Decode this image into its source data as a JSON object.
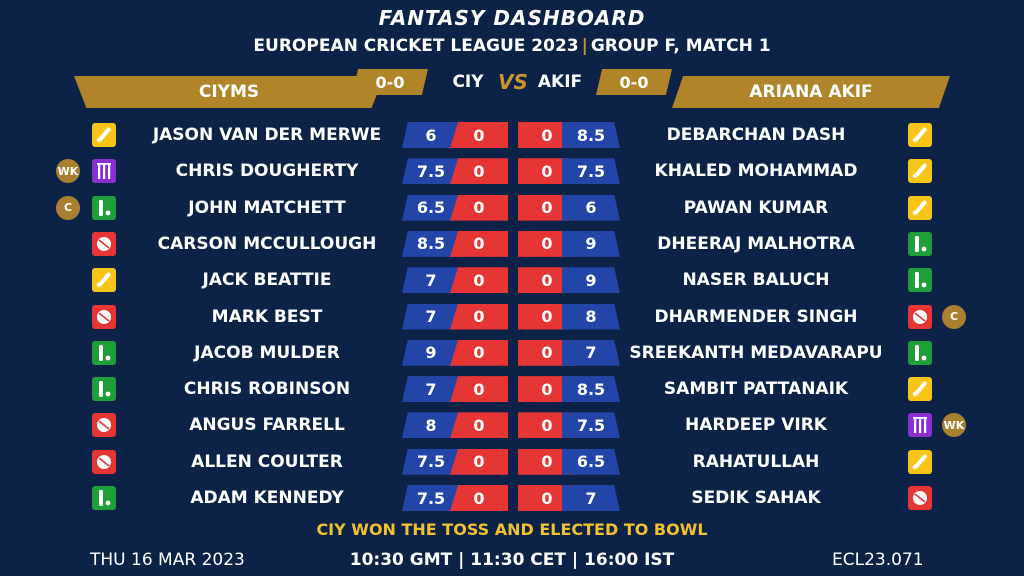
{
  "header": {
    "title": "FANTASY DASHBOARD",
    "league": "EUROPEAN CRICKET LEAGUE 2023",
    "separator": "|",
    "match": "GROUP F, MATCH 1"
  },
  "teams": {
    "left": {
      "name": "CIYMS",
      "abbr": "CIY",
      "score": "0-0"
    },
    "right": {
      "name": "ARIANA AKIF",
      "abbr": "AKIF",
      "score": "0-0"
    },
    "vs": "VS"
  },
  "colors": {
    "background": "#0c2247",
    "gold": "#b0852a",
    "credit_blue": "#2345a8",
    "points_red": "#e53535",
    "toss_yellow": "#f2c12e",
    "role_batter": "#f5c518",
    "role_bowler": "#e53535",
    "role_allrounder": "#1f9e3a",
    "role_keeper": "#8b2fd0"
  },
  "players": [
    {
      "left": {
        "name": "JASON VAN DER MERWE",
        "role": "batter-icon",
        "badge": "",
        "credit": "6",
        "points": "0"
      },
      "right": {
        "name": "DEBARCHAN DASH",
        "role": "batter-icon",
        "badge": "",
        "credit": "8.5",
        "points": "0"
      }
    },
    {
      "left": {
        "name": "CHRIS DOUGHERTY",
        "role": "wicketkeeper-icon",
        "badge": "WK",
        "credit": "7.5",
        "points": "0"
      },
      "right": {
        "name": "KHALED MOHAMMAD",
        "role": "batter-icon",
        "badge": "",
        "credit": "7.5",
        "points": "0"
      }
    },
    {
      "left": {
        "name": "JOHN MATCHETT",
        "role": "allrounder-icon",
        "badge": "C",
        "credit": "6.5",
        "points": "0"
      },
      "right": {
        "name": "PAWAN KUMAR",
        "role": "batter-icon",
        "badge": "",
        "credit": "6",
        "points": "0"
      }
    },
    {
      "left": {
        "name": "CARSON MCCULLOUGH",
        "role": "bowler-icon",
        "badge": "",
        "credit": "8.5",
        "points": "0"
      },
      "right": {
        "name": "DHEERAJ MALHOTRA",
        "role": "allrounder-icon",
        "badge": "",
        "credit": "9",
        "points": "0"
      }
    },
    {
      "left": {
        "name": "JACK BEATTIE",
        "role": "batter-icon",
        "badge": "",
        "credit": "7",
        "points": "0"
      },
      "right": {
        "name": "NASER BALUCH",
        "role": "allrounder-icon",
        "badge": "",
        "credit": "9",
        "points": "0"
      }
    },
    {
      "left": {
        "name": "MARK BEST",
        "role": "bowler-icon",
        "badge": "",
        "credit": "7",
        "points": "0"
      },
      "right": {
        "name": "DHARMENDER SINGH",
        "role": "bowler-icon",
        "badge": "C",
        "credit": "8",
        "points": "0"
      }
    },
    {
      "left": {
        "name": "JACOB MULDER",
        "role": "allrounder-icon",
        "badge": "",
        "credit": "9",
        "points": "0"
      },
      "right": {
        "name": "SREEKANTH MEDAVARAPU",
        "role": "allrounder-icon",
        "badge": "",
        "credit": "7",
        "points": "0"
      }
    },
    {
      "left": {
        "name": "CHRIS ROBINSON",
        "role": "allrounder-icon",
        "badge": "",
        "credit": "7",
        "points": "0"
      },
      "right": {
        "name": "SAMBIT PATTANAIK",
        "role": "batter-icon",
        "badge": "",
        "credit": "8.5",
        "points": "0"
      }
    },
    {
      "left": {
        "name": "ANGUS FARRELL",
        "role": "bowler-icon",
        "badge": "",
        "credit": "8",
        "points": "0"
      },
      "right": {
        "name": "HARDEEP VIRK",
        "role": "wicketkeeper-icon",
        "badge": "WK",
        "credit": "7.5",
        "points": "0"
      }
    },
    {
      "left": {
        "name": "ALLEN COULTER",
        "role": "bowler-icon",
        "badge": "",
        "credit": "7.5",
        "points": "0"
      },
      "right": {
        "name": "RAHATULLAH",
        "role": "batter-icon",
        "badge": "",
        "credit": "6.5",
        "points": "0"
      }
    },
    {
      "left": {
        "name": "ADAM KENNEDY",
        "role": "allrounder-icon",
        "badge": "",
        "credit": "7.5",
        "points": "0"
      },
      "right": {
        "name": "SEDIK SAHAK",
        "role": "bowler-icon",
        "badge": "",
        "credit": "7",
        "points": "0"
      }
    }
  ],
  "toss": "CIY WON THE TOSS AND ELECTED TO BOWL",
  "footer": {
    "date": "THU 16 MAR 2023",
    "time": "10:30 GMT | 11:30 CET | 16:00 IST",
    "code": "ECL23.071"
  }
}
